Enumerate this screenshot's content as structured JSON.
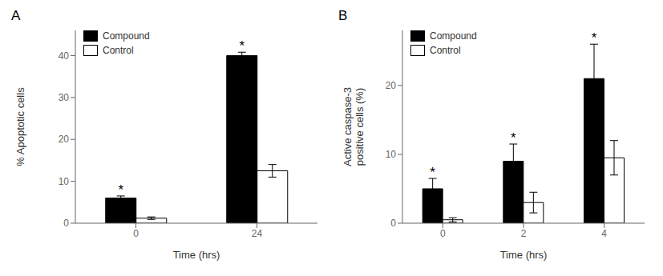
{
  "chart_data": [
    {
      "type": "bar",
      "title": "A",
      "xlabel": "Time (hrs)",
      "ylabel": "% Apoptotic cells",
      "categories": [
        "0",
        "24"
      ],
      "series": [
        {
          "name": "Compound",
          "color": "#000000",
          "values": [
            6.0,
            40.0
          ],
          "errors": [
            0.5,
            0.8
          ]
        },
        {
          "name": "Control",
          "color": "#ffffff",
          "values": [
            1.2,
            12.5
          ],
          "errors": [
            0.3,
            1.5
          ]
        }
      ],
      "annotations": [
        {
          "text": "*",
          "series": "Compound",
          "category": "0"
        },
        {
          "text": "*",
          "series": "Compound",
          "category": "24"
        }
      ],
      "ylim": [
        0,
        46
      ],
      "yticks": [
        0,
        10,
        20,
        30,
        40
      ],
      "grid": false,
      "legend": "upper left"
    },
    {
      "type": "bar",
      "title": "B",
      "xlabel": "Time (hrs)",
      "ylabel": "Active caspase-3\npositive cells (%)",
      "categories": [
        "0",
        "2",
        "4"
      ],
      "series": [
        {
          "name": "Compound",
          "color": "#000000",
          "values": [
            5.0,
            9.0,
            21.0
          ],
          "errors": [
            1.5,
            2.5,
            5.0
          ]
        },
        {
          "name": "Control",
          "color": "#ffffff",
          "values": [
            0.5,
            3.0,
            9.5
          ],
          "errors": [
            0.3,
            1.5,
            2.5
          ]
        }
      ],
      "annotations": [
        {
          "text": "*",
          "series": "Compound",
          "category": "0"
        },
        {
          "text": "*",
          "series": "Compound",
          "category": "2"
        },
        {
          "text": "*",
          "series": "Compound",
          "category": "4"
        }
      ],
      "ylim": [
        0,
        28
      ],
      "yticks": [
        0,
        10,
        20
      ],
      "grid": false,
      "legend": "upper left"
    }
  ]
}
